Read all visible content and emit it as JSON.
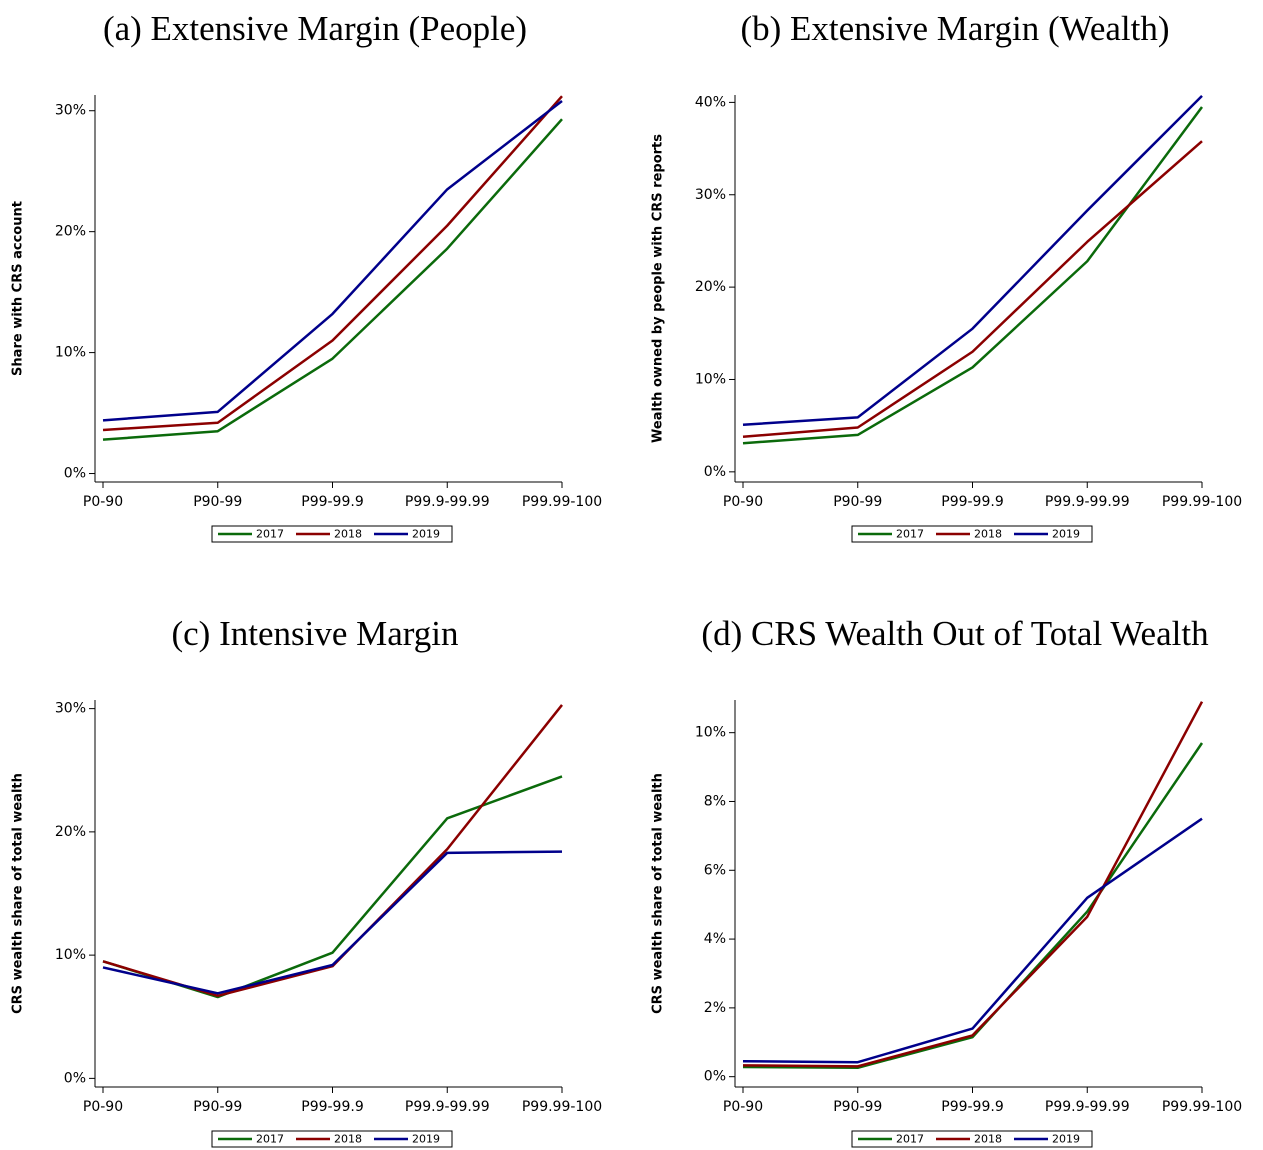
{
  "chart_data": [
    {
      "type": "line",
      "title": "(a) Extensive Margin (People)",
      "y_label": "Share with CRS account",
      "categories": [
        "P0-90",
        "P90-99",
        "P99-99.9",
        "P99.9-99.99",
        "P99.99-100"
      ],
      "series": [
        {
          "name": "2017",
          "color": "#0b6a0b",
          "values": [
            2.8,
            3.5,
            9.5,
            18.6,
            29.3
          ]
        },
        {
          "name": "2018",
          "color": "#8b0000",
          "values": [
            3.6,
            4.2,
            11.0,
            20.5,
            31.2
          ]
        },
        {
          "name": "2019",
          "color": "#00008b",
          "values": [
            4.4,
            5.1,
            13.2,
            23.5,
            30.8
          ]
        }
      ],
      "ylim": [
        -0.7,
        31.3
      ],
      "yticks": [
        {
          "value": 0,
          "label": "0%"
        },
        {
          "value": 10,
          "label": "10%"
        },
        {
          "value": 20,
          "label": "20%"
        },
        {
          "value": 30,
          "label": "30%"
        }
      ],
      "legend": "bottom"
    },
    {
      "type": "line",
      "title": "(b) Extensive Margin (Wealth)",
      "y_label": "Wealth owned by people with CRS reports",
      "categories": [
        "P0-90",
        "P90-99",
        "P99-99.9",
        "P99.9-99.99",
        "P99.99-100"
      ],
      "series": [
        {
          "name": "2017",
          "color": "#0b6a0b",
          "values": [
            3.1,
            4.0,
            11.3,
            22.8,
            39.5
          ]
        },
        {
          "name": "2018",
          "color": "#8b0000",
          "values": [
            3.8,
            4.8,
            13.0,
            24.9,
            35.8
          ]
        },
        {
          "name": "2019",
          "color": "#00008b",
          "values": [
            5.1,
            5.9,
            15.5,
            28.3,
            40.7
          ]
        }
      ],
      "ylim": [
        -1.1,
        40.8
      ],
      "yticks": [
        {
          "value": 0,
          "label": "0%"
        },
        {
          "value": 10,
          "label": "10%"
        },
        {
          "value": 20,
          "label": "20%"
        },
        {
          "value": 30,
          "label": "30%"
        },
        {
          "value": 40,
          "label": "40%"
        }
      ],
      "legend": "bottom"
    },
    {
      "type": "line",
      "title": "(c) Intensive Margin",
      "y_label": "CRS wealth share of total wealth",
      "categories": [
        "P0-90",
        "P90-99",
        "P99-99.9",
        "P99.9-99.99",
        "P99.99-100"
      ],
      "series": [
        {
          "name": "2017",
          "color": "#0b6a0b",
          "values": [
            9.5,
            6.6,
            10.2,
            21.1,
            24.5
          ]
        },
        {
          "name": "2018",
          "color": "#8b0000",
          "values": [
            9.5,
            6.7,
            9.1,
            18.6,
            30.3
          ]
        },
        {
          "name": "2019",
          "color": "#00008b",
          "values": [
            9.0,
            6.9,
            9.2,
            18.3,
            18.4
          ]
        }
      ],
      "ylim": [
        -0.7,
        30.7
      ],
      "yticks": [
        {
          "value": 0,
          "label": "0%"
        },
        {
          "value": 10,
          "label": "10%"
        },
        {
          "value": 20,
          "label": "20%"
        },
        {
          "value": 30,
          "label": "30%"
        }
      ],
      "legend": "bottom"
    },
    {
      "type": "line",
      "title": "(d) CRS Wealth Out of Total Wealth",
      "y_label": "CRS wealth share of total wealth",
      "categories": [
        "P0-90",
        "P90-99",
        "P99-99.9",
        "P99.9-99.99",
        "P99.99-100"
      ],
      "series": [
        {
          "name": "2017",
          "color": "#0b6a0b",
          "values": [
            0.28,
            0.26,
            1.15,
            4.8,
            9.7
          ]
        },
        {
          "name": "2018",
          "color": "#8b0000",
          "values": [
            0.33,
            0.3,
            1.2,
            4.65,
            10.9
          ]
        },
        {
          "name": "2019",
          "color": "#00008b",
          "values": [
            0.45,
            0.42,
            1.4,
            5.2,
            7.5
          ]
        }
      ],
      "ylim": [
        -0.3,
        10.95
      ],
      "yticks": [
        {
          "value": 0,
          "label": "0%"
        },
        {
          "value": 2,
          "label": "2%"
        },
        {
          "value": 4,
          "label": "4%"
        },
        {
          "value": 6,
          "label": "6%"
        },
        {
          "value": 8,
          "label": "8%"
        },
        {
          "value": 10,
          "label": "10%"
        }
      ],
      "legend": "bottom"
    }
  ]
}
